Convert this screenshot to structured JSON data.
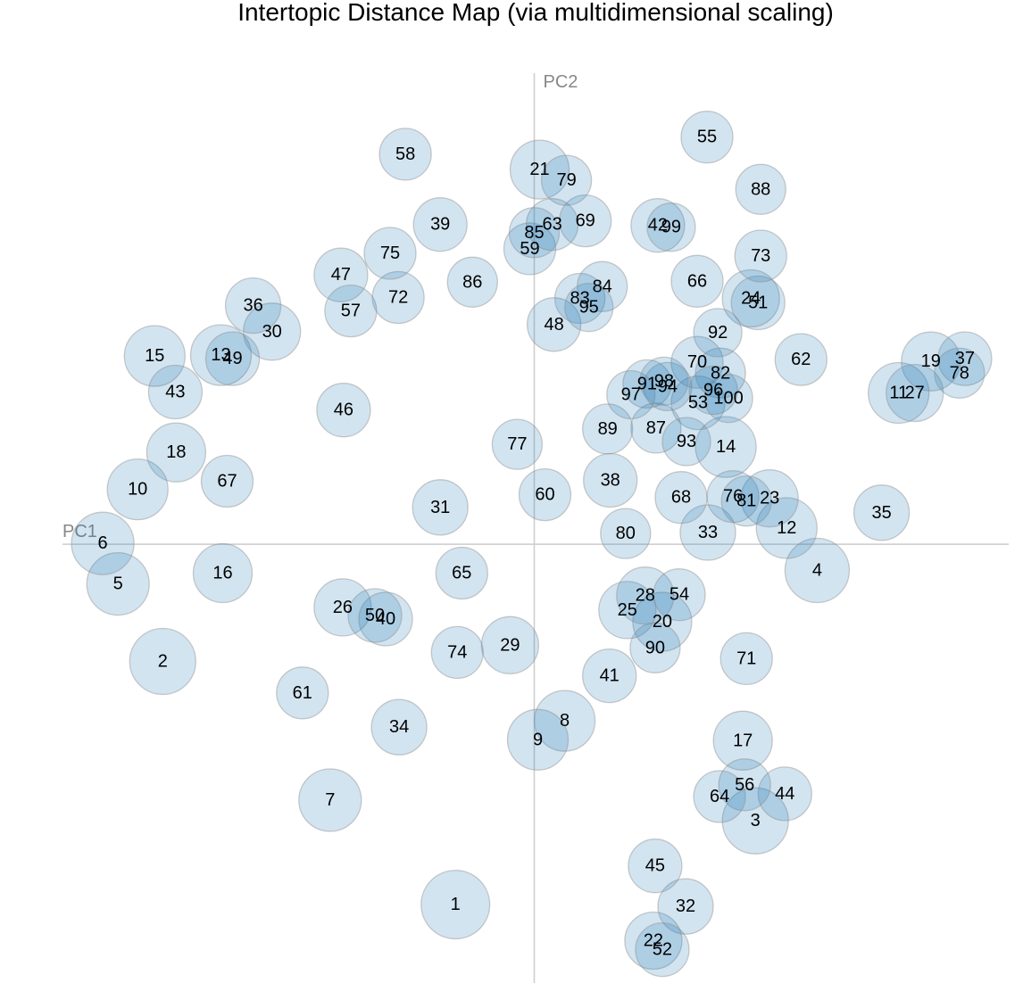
{
  "chart_data": {
    "type": "scatter",
    "title": "Intertopic Distance Map (via multidimensional scaling)",
    "xlabel": "PC1",
    "ylabel": "PC2",
    "xlim": [
      -527,
      530
    ],
    "ylim": [
      -487,
      523
    ],
    "points": [
      {
        "label": "1",
        "x": -88,
        "y": -400,
        "size": 1474
      },
      {
        "label": "2",
        "x": -415,
        "y": -130,
        "size": 1369
      },
      {
        "label": "3",
        "x": 247,
        "y": -307,
        "size": 1369
      },
      {
        "label": "4",
        "x": 316,
        "y": -29,
        "size": 1296
      },
      {
        "label": "5",
        "x": -465,
        "y": -44,
        "size": 1225
      },
      {
        "label": "6",
        "x": -482,
        "y": 1,
        "size": 1225
      },
      {
        "label": "7",
        "x": -228,
        "y": -284,
        "size": 1225
      },
      {
        "label": "8",
        "x": 34,
        "y": -196,
        "size": 1156
      },
      {
        "label": "9",
        "x": 4,
        "y": -217,
        "size": 1156
      },
      {
        "label": "10",
        "x": -443,
        "y": 61,
        "size": 1156
      },
      {
        "label": "11",
        "x": 407,
        "y": 168,
        "size": 1156
      },
      {
        "label": "12",
        "x": 282,
        "y": 18,
        "size": 1156
      },
      {
        "label": "13",
        "x": -350,
        "y": 210,
        "size": 1156
      },
      {
        "label": "14",
        "x": 214,
        "y": 108,
        "size": 1156
      },
      {
        "label": "15",
        "x": -424,
        "y": 209,
        "size": 1156
      },
      {
        "label": "16",
        "x": -348,
        "y": -32,
        "size": 1089
      },
      {
        "label": "17",
        "x": 233,
        "y": -218,
        "size": 1089
      },
      {
        "label": "18",
        "x": -400,
        "y": 102,
        "size": 1089
      },
      {
        "label": "19",
        "x": 443,
        "y": 203,
        "size": 1089
      },
      {
        "label": "20",
        "x": 143,
        "y": -86,
        "size": 1089
      },
      {
        "label": "21",
        "x": 6,
        "y": 416,
        "size": 1089
      },
      {
        "label": "22",
        "x": 133,
        "y": -440,
        "size": 1024
      },
      {
        "label": "23",
        "x": 263,
        "y": 51,
        "size": 1024
      },
      {
        "label": "24",
        "x": 242,
        "y": 273,
        "size": 1024
      },
      {
        "label": "25",
        "x": 104,
        "y": -73,
        "size": 1024
      },
      {
        "label": "26",
        "x": -214,
        "y": -70,
        "size": 1024
      },
      {
        "label": "27",
        "x": 425,
        "y": 168,
        "size": 1024
      },
      {
        "label": "28",
        "x": 124,
        "y": -57,
        "size": 1024
      },
      {
        "label": "29",
        "x": -27,
        "y": -112,
        "size": 1024
      },
      {
        "label": "30",
        "x": -293,
        "y": 236,
        "size": 1024
      },
      {
        "label": "31",
        "x": -105,
        "y": 41,
        "size": 961
      },
      {
        "label": "32",
        "x": 169,
        "y": -402,
        "size": 961
      },
      {
        "label": "33",
        "x": 194,
        "y": 13,
        "size": 961
      },
      {
        "label": "34",
        "x": -151,
        "y": -203,
        "size": 961
      },
      {
        "label": "35",
        "x": 388,
        "y": 35,
        "size": 961
      },
      {
        "label": "36",
        "x": -314,
        "y": 265,
        "size": 961
      },
      {
        "label": "37",
        "x": 481,
        "y": 206,
        "size": 900
      },
      {
        "label": "38",
        "x": 85,
        "y": 71,
        "size": 900
      },
      {
        "label": "39",
        "x": -105,
        "y": 355,
        "size": 900
      },
      {
        "label": "40",
        "x": -166,
        "y": -83,
        "size": 900
      },
      {
        "label": "41",
        "x": 84,
        "y": -146,
        "size": 900
      },
      {
        "label": "42",
        "x": 138,
        "y": 354,
        "size": 900
      },
      {
        "label": "43",
        "x": -401,
        "y": 169,
        "size": 900
      },
      {
        "label": "44",
        "x": 280,
        "y": -277,
        "size": 900
      },
      {
        "label": "45",
        "x": 135,
        "y": -357,
        "size": 900
      },
      {
        "label": "46",
        "x": -213,
        "y": 149,
        "size": 900
      },
      {
        "label": "47",
        "x": -216,
        "y": 299,
        "size": 900
      },
      {
        "label": "48",
        "x": 22,
        "y": 244,
        "size": 900
      },
      {
        "label": "49",
        "x": -337,
        "y": 206,
        "size": 900
      },
      {
        "label": "50",
        "x": -178,
        "y": -79,
        "size": 900
      },
      {
        "label": "51",
        "x": 250,
        "y": 268,
        "size": 900
      },
      {
        "label": "52",
        "x": 143,
        "y": -450,
        "size": 900
      },
      {
        "label": "53",
        "x": 183,
        "y": 157,
        "size": 900
      },
      {
        "label": "54",
        "x": 162,
        "y": -56,
        "size": 841
      },
      {
        "label": "55",
        "x": 193,
        "y": 452,
        "size": 841
      },
      {
        "label": "56",
        "x": 235,
        "y": -267,
        "size": 841
      },
      {
        "label": "57",
        "x": -205,
        "y": 259,
        "size": 841
      },
      {
        "label": "58",
        "x": -144,
        "y": 433,
        "size": 841
      },
      {
        "label": "59",
        "x": -5,
        "y": 328,
        "size": 841
      },
      {
        "label": "60",
        "x": 12,
        "y": 55,
        "size": 841
      },
      {
        "label": "61",
        "x": -259,
        "y": -165,
        "size": 841
      },
      {
        "label": "62",
        "x": 298,
        "y": 205,
        "size": 841
      },
      {
        "label": "63",
        "x": 20,
        "y": 355,
        "size": 841
      },
      {
        "label": "64",
        "x": 207,
        "y": -280,
        "size": 841
      },
      {
        "label": "65",
        "x": -81,
        "y": -32,
        "size": 841
      },
      {
        "label": "66",
        "x": 182,
        "y": 292,
        "size": 841
      },
      {
        "label": "67",
        "x": -343,
        "y": 70,
        "size": 841
      },
      {
        "label": "68",
        "x": 164,
        "y": 52,
        "size": 841
      },
      {
        "label": "69",
        "x": 57,
        "y": 359,
        "size": 841
      },
      {
        "label": "70",
        "x": 182,
        "y": 202,
        "size": 841
      },
      {
        "label": "71",
        "x": 237,
        "y": -127,
        "size": 841
      },
      {
        "label": "72",
        "x": -152,
        "y": 274,
        "size": 841
      },
      {
        "label": "73",
        "x": 253,
        "y": 320,
        "size": 841
      },
      {
        "label": "74",
        "x": -86,
        "y": -120,
        "size": 841
      },
      {
        "label": "75",
        "x": -161,
        "y": 323,
        "size": 841
      },
      {
        "label": "76",
        "x": 222,
        "y": 53,
        "size": 841
      },
      {
        "label": "77",
        "x": -19,
        "y": 111,
        "size": 784
      },
      {
        "label": "78",
        "x": 475,
        "y": 190,
        "size": 784
      },
      {
        "label": "79",
        "x": 36,
        "y": 404,
        "size": 784
      },
      {
        "label": "80",
        "x": 102,
        "y": 12,
        "size": 784
      },
      {
        "label": "81",
        "x": 237,
        "y": 48,
        "size": 784
      },
      {
        "label": "82",
        "x": 208,
        "y": 190,
        "size": 784
      },
      {
        "label": "83",
        "x": 51,
        "y": 273,
        "size": 784
      },
      {
        "label": "84",
        "x": 76,
        "y": 286,
        "size": 784
      },
      {
        "label": "85",
        "x": 0,
        "y": 346,
        "size": 784
      },
      {
        "label": "86",
        "x": -69,
        "y": 291,
        "size": 784
      },
      {
        "label": "87",
        "x": 136,
        "y": 129,
        "size": 784
      },
      {
        "label": "88",
        "x": 253,
        "y": 394,
        "size": 784
      },
      {
        "label": "89",
        "x": 82,
        "y": 128,
        "size": 784
      },
      {
        "label": "90",
        "x": 135,
        "y": -115,
        "size": 784
      },
      {
        "label": "91",
        "x": 126,
        "y": 178,
        "size": 729
      },
      {
        "label": "92",
        "x": 205,
        "y": 235,
        "size": 729
      },
      {
        "label": "93",
        "x": 170,
        "y": 114,
        "size": 729
      },
      {
        "label": "94",
        "x": 149,
        "y": 175,
        "size": 729
      },
      {
        "label": "95",
        "x": 61,
        "y": 263,
        "size": 729
      },
      {
        "label": "96",
        "x": 200,
        "y": 171,
        "size": 729
      },
      {
        "label": "97",
        "x": 108,
        "y": 166,
        "size": 729
      },
      {
        "label": "98",
        "x": 145,
        "y": 181,
        "size": 729
      },
      {
        "label": "99",
        "x": 153,
        "y": 352,
        "size": 729
      },
      {
        "label": "100",
        "x": 217,
        "y": 162,
        "size": 729
      }
    ]
  }
}
